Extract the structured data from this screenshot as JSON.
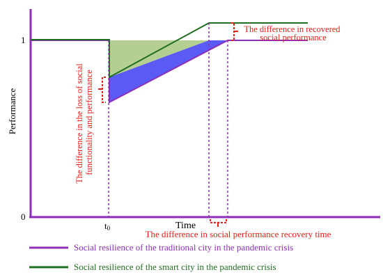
{
  "axes": {
    "y_label": "Performance",
    "x_label": "Time",
    "y_tick_top": "1",
    "y_tick_bottom": "0",
    "x_tick_t0_base": "t",
    "x_tick_t0_sub": "0"
  },
  "annotations": {
    "recovered_line1": "The difference in recovered",
    "recovered_line2": "social performance",
    "loss_line1": "The difference in the loss of social",
    "loss_line2": "functionality and performance",
    "recovery_time": "The difference in social performance recovery time"
  },
  "legend": {
    "traditional": "Social resilience of the traditional city in the pandemic crisis",
    "smart": "Social resilience of the smart city in the pandemic crisis"
  },
  "colors": {
    "traditional": "#8c2fb8",
    "smart": "#1f6e1f",
    "annotation": "#e32117",
    "fill_blue": "#5a5af5",
    "fill_green": "#b5cf92"
  }
}
